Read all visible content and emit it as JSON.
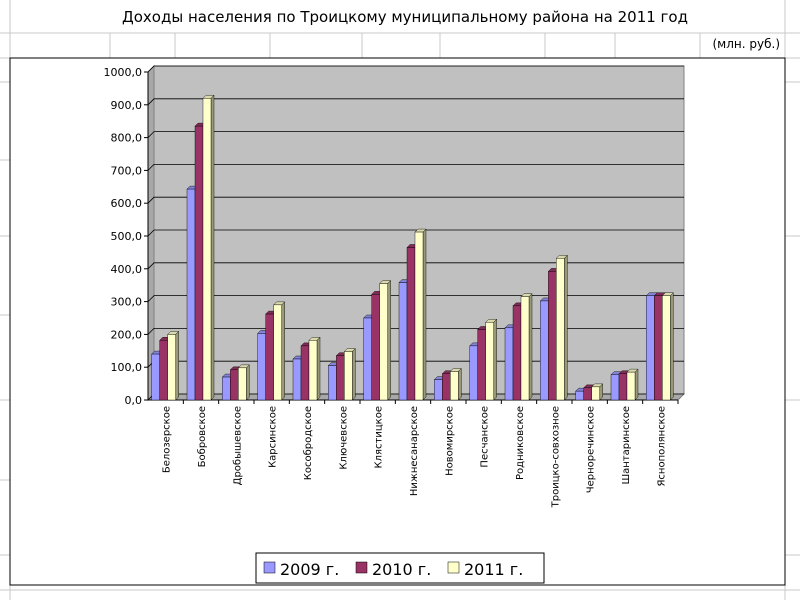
{
  "chart_data": {
    "type": "bar",
    "title": "Доходы населения по Троицкому муниципальному района  на 2011 год",
    "unit_label": "(млн. руб.)",
    "categories": [
      "Белозерское",
      "Бобровское",
      "Дробышевское",
      "Карсинское",
      "Кособродское",
      "Ключевское",
      "Клястицкое",
      "Нижнесанарское",
      "Новомирское",
      "Песчанское",
      "Родниковское",
      "Троицко-совхозное",
      "Черноречинское",
      "Шантаринское",
      "Яснополянское"
    ],
    "series": [
      {
        "name": "2009 г.",
        "color": "#9999ff",
        "values": [
          140,
          643,
          70,
          203,
          125,
          105,
          250,
          358,
          62,
          165,
          220,
          302,
          27,
          77,
          318
        ]
      },
      {
        "name": "2010 г.",
        "color": "#993366",
        "values": [
          182,
          835,
          92,
          262,
          165,
          135,
          322,
          465,
          80,
          215,
          287,
          392,
          37,
          80,
          318
        ]
      },
      {
        "name": "2011 г.",
        "color": "#ffffcc",
        "values": [
          200,
          920,
          98,
          290,
          182,
          148,
          355,
          512,
          87,
          237,
          315,
          432,
          40,
          85,
          318
        ]
      }
    ],
    "ylim": [
      0,
      1000
    ],
    "yticks": [
      {
        "value": 0,
        "label": "0,0"
      },
      {
        "value": 100,
        "label": "100,0"
      },
      {
        "value": 200,
        "label": "200,0"
      },
      {
        "value": 300,
        "label": "300,0"
      },
      {
        "value": 400,
        "label": "400,0"
      },
      {
        "value": 500,
        "label": "500,0"
      },
      {
        "value": 600,
        "label": "600,0"
      },
      {
        "value": 700,
        "label": "700,0"
      },
      {
        "value": 800,
        "label": "800,0"
      },
      {
        "value": 900,
        "label": "900,0"
      },
      {
        "value": 1000,
        "label": "1000,0"
      }
    ],
    "grid": true,
    "legend": "bottom"
  }
}
